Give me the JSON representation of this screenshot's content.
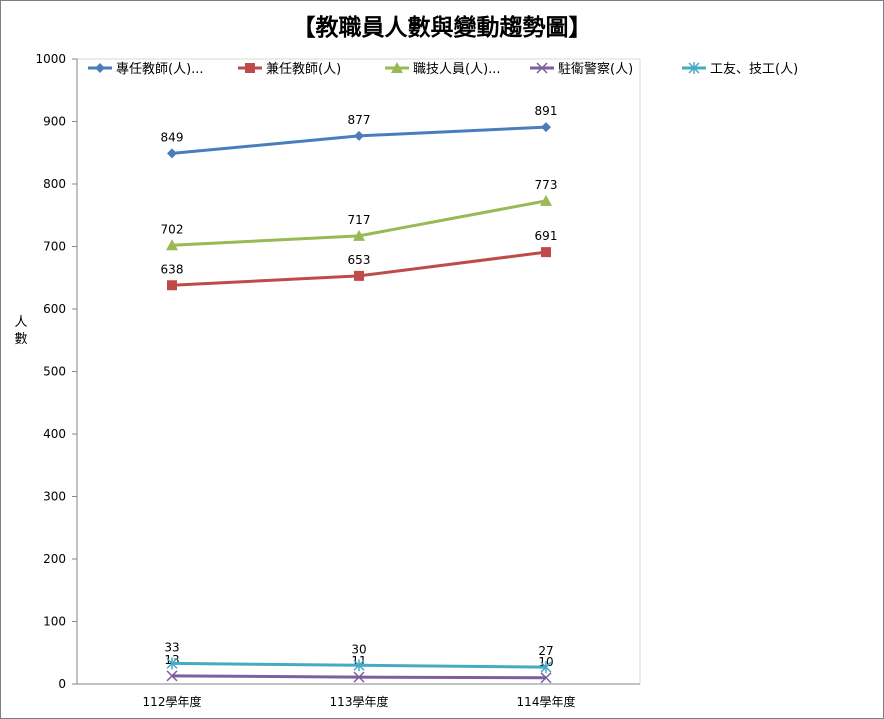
{
  "chart_data": {
    "type": "line",
    "title": "【教職員人數與變動趨勢圖】",
    "xlabel": "",
    "ylabel": "人數",
    "categories": [
      "112學年度",
      "113學年度",
      "114學年度"
    ],
    "ylim": [
      0,
      1000
    ],
    "yticks": [
      0,
      100,
      200,
      300,
      400,
      500,
      600,
      700,
      800,
      900,
      1000
    ],
    "grid": false,
    "legend_position": "top",
    "series": [
      {
        "name": "專任教師(人)...",
        "values": [
          849,
          877,
          891
        ],
        "color": "#4a7ebb",
        "marker": "diamond"
      },
      {
        "name": "兼任教師(人)",
        "values": [
          638,
          653,
          691
        ],
        "color": "#be4b48",
        "marker": "square"
      },
      {
        "name": "職技人員(人)...",
        "values": [
          702,
          717,
          773
        ],
        "color": "#98b954",
        "marker": "triangle"
      },
      {
        "name": "駐衛警察(人)",
        "values": [
          13,
          11,
          10
        ],
        "color": "#7d5fa0",
        "marker": "x"
      },
      {
        "name": "工友、技工(人)",
        "values": [
          33,
          30,
          27
        ],
        "color": "#46aac5",
        "marker": "star"
      }
    ]
  }
}
